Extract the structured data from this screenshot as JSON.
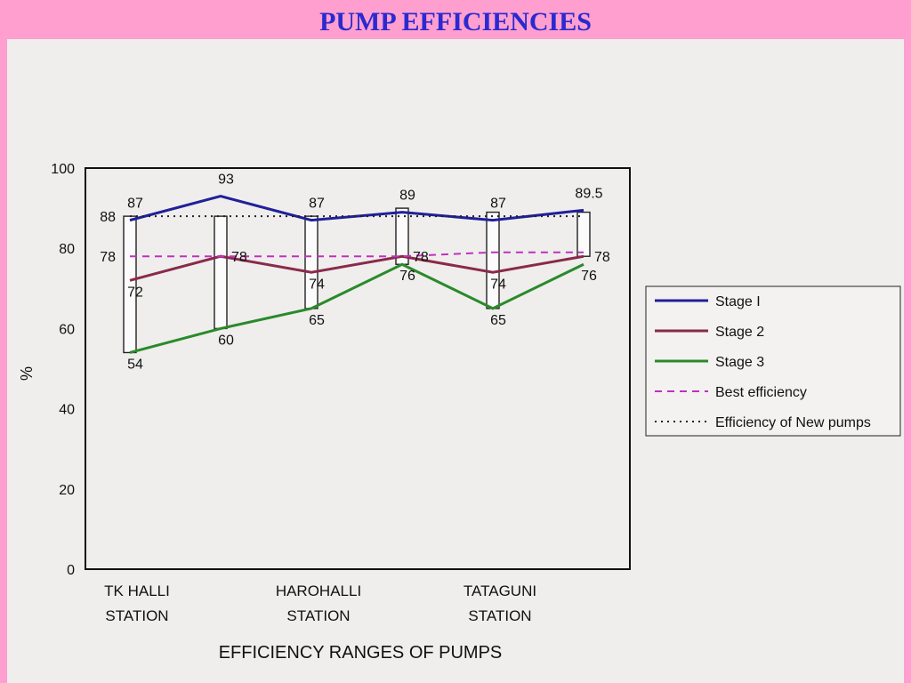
{
  "slide": {
    "title": "PUMP EFFICIENCIES"
  },
  "chart_data": {
    "type": "line",
    "title": "",
    "caption": "EFFICIENCY RANGES OF PUMPS",
    "ylabel": "%",
    "ylim": [
      0,
      100
    ],
    "yticks": [
      0,
      20,
      40,
      60,
      80,
      100
    ],
    "x": [
      0,
      1,
      2,
      3,
      4,
      5
    ],
    "station_labels": [
      {
        "x": 0,
        "lines": [
          "TK HALLI",
          "STATION"
        ]
      },
      {
        "x": 2,
        "lines": [
          "HAROHALLI",
          "STATION"
        ]
      },
      {
        "x": 4,
        "lines": [
          "TATAGUNI",
          "STATION"
        ]
      }
    ],
    "series": [
      {
        "name": "Stage I",
        "color": "#20209a",
        "style": "solid",
        "values": [
          87,
          93,
          87,
          89,
          87,
          89.5
        ]
      },
      {
        "name": "Stage 2",
        "color": "#8a2a4a",
        "style": "solid",
        "values": [
          72,
          78,
          74,
          78,
          74,
          78
        ]
      },
      {
        "name": "Stage 3",
        "color": "#2a8a2a",
        "style": "solid",
        "values": [
          54,
          60,
          65,
          76,
          65,
          76
        ]
      },
      {
        "name": "Best efficiency",
        "color": "#c030c0",
        "style": "dashed",
        "values": [
          78,
          78,
          78,
          78,
          79,
          79
        ]
      },
      {
        "name": "Efficiency of New pumps",
        "color": "#222222",
        "style": "dotted",
        "values": [
          88,
          88,
          88,
          88,
          88,
          88
        ]
      }
    ],
    "range_bars": [
      {
        "x": 0,
        "low": 54,
        "high": 88
      },
      {
        "x": 1,
        "low": 60,
        "high": 88
      },
      {
        "x": 2,
        "low": 65,
        "high": 88
      },
      {
        "x": 3,
        "low": 76,
        "high": 90
      },
      {
        "x": 4,
        "low": 65,
        "high": 89
      },
      {
        "x": 5,
        "low": 78,
        "high": 89
      }
    ],
    "data_labels": [
      {
        "text": "88",
        "x": 0,
        "y": 88,
        "pos": "left"
      },
      {
        "text": "87",
        "x": 0,
        "y": 87,
        "pos": "above"
      },
      {
        "text": "78",
        "x": 0,
        "y": 78,
        "pos": "left"
      },
      {
        "text": "72",
        "x": 0,
        "y": 72,
        "pos": "below"
      },
      {
        "text": "54",
        "x": 0,
        "y": 54,
        "pos": "below"
      },
      {
        "text": "93",
        "x": 1,
        "y": 93,
        "pos": "above"
      },
      {
        "text": "78",
        "x": 1,
        "y": 78,
        "pos": "right"
      },
      {
        "text": "60",
        "x": 1,
        "y": 60,
        "pos": "below"
      },
      {
        "text": "87",
        "x": 2,
        "y": 87,
        "pos": "above"
      },
      {
        "text": "74",
        "x": 2,
        "y": 74,
        "pos": "below"
      },
      {
        "text": "65",
        "x": 2,
        "y": 65,
        "pos": "below"
      },
      {
        "text": "89",
        "x": 3,
        "y": 89,
        "pos": "above"
      },
      {
        "text": "78",
        "x": 3,
        "y": 78,
        "pos": "right"
      },
      {
        "text": "76",
        "x": 3,
        "y": 76,
        "pos": "below"
      },
      {
        "text": "87",
        "x": 4,
        "y": 87,
        "pos": "above"
      },
      {
        "text": "74",
        "x": 4,
        "y": 74,
        "pos": "below"
      },
      {
        "text": "65",
        "x": 4,
        "y": 65,
        "pos": "below"
      },
      {
        "text": "89.5",
        "x": 5,
        "y": 89.5,
        "pos": "above"
      },
      {
        "text": "78",
        "x": 5,
        "y": 78,
        "pos": "right"
      },
      {
        "text": "76",
        "x": 5,
        "y": 76,
        "pos": "below"
      }
    ],
    "legend": "right"
  }
}
